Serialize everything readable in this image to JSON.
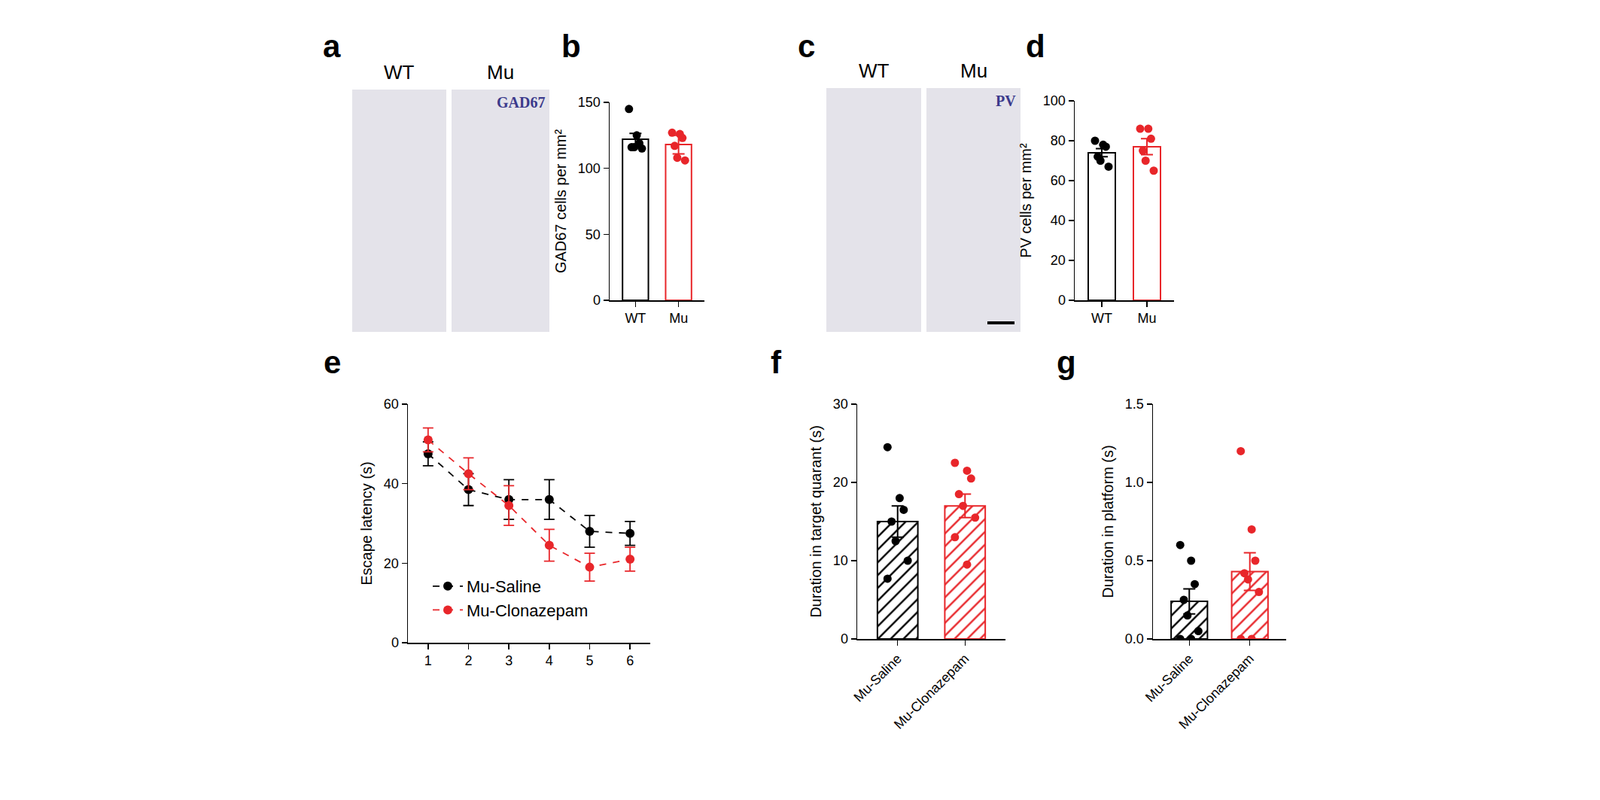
{
  "images": [
    {
      "panel": "a",
      "labels": [
        "WT",
        "Mu"
      ],
      "stain": "GAD67"
    },
    {
      "panel": "c",
      "labels": [
        "WT",
        "Mu"
      ],
      "stain": "PV"
    }
  ],
  "chart_data": [
    {
      "panel": "b",
      "type": "bar",
      "marker": "open",
      "y_label": "GAD67 cells per mm²",
      "categories": [
        "WT",
        "Mu"
      ],
      "values": [
        122,
        118
      ],
      "errors": [
        4.5,
        7
      ],
      "points": [
        [
          145,
          125,
          119,
          116,
          116,
          115
        ],
        [
          127,
          126,
          123,
          117,
          108,
          106
        ]
      ],
      "colors": [
        "#000000",
        "#e8262a"
      ],
      "ylim": [
        0,
        150
      ],
      "yticks": [
        0,
        50,
        100,
        150
      ],
      "grid": false
    },
    {
      "panel": "d",
      "type": "bar",
      "marker": "open",
      "y_label": "PV cells per mm²",
      "categories": [
        "WT",
        "Mu"
      ],
      "values": [
        74,
        77
      ],
      "errors": [
        2,
        4
      ],
      "points": [
        [
          80,
          78,
          77,
          72,
          70,
          67
        ],
        [
          86,
          86,
          81,
          75,
          70,
          65
        ]
      ],
      "colors": [
        "#000000",
        "#e8262a"
      ],
      "ylim": [
        0,
        100
      ],
      "yticks": [
        0,
        20,
        40,
        60,
        80,
        100
      ],
      "grid": false
    },
    {
      "panel": "e",
      "type": "line",
      "y_label": "Escape latency (s)",
      "x": [
        1,
        2,
        3,
        4,
        5,
        6
      ],
      "xlim": [
        0.5,
        6.5
      ],
      "xticks": [
        1,
        2,
        3,
        4,
        5,
        6
      ],
      "ylim": [
        0,
        60
      ],
      "yticks": [
        0,
        20,
        40,
        60
      ],
      "grid": false,
      "legend": "lower left",
      "series": [
        {
          "name": "Mu-Saline",
          "color": "#000000",
          "marker": "circle",
          "line_style": "dashed",
          "values": [
            47.5,
            38.5,
            36,
            36,
            28,
            27.5
          ],
          "errors": [
            3,
            4,
            5,
            5,
            4,
            3
          ]
        },
        {
          "name": "Mu-Clonazepam",
          "color": "#e8262a",
          "marker": "circle",
          "line_style": "dashed",
          "values": [
            51,
            42.5,
            34.5,
            24.5,
            19,
            21
          ],
          "errors": [
            3,
            4,
            5,
            4,
            3.5,
            3
          ]
        }
      ]
    },
    {
      "panel": "f",
      "type": "bar",
      "marker": "hatch",
      "y_label": "Duration in target quarant (s)",
      "categories": [
        "Mu-Saline",
        "Mu-Clonazepam"
      ],
      "values": [
        15,
        17
      ],
      "errors": [
        2,
        1.5
      ],
      "points": [
        [
          24.5,
          18,
          16.5,
          15,
          12.5,
          10,
          7.7
        ],
        [
          22.5,
          21.5,
          20.5,
          18.5,
          17,
          15.5,
          13,
          9.5
        ]
      ],
      "colors": [
        "#000000",
        "#e8262a"
      ],
      "ylim": [
        0,
        30
      ],
      "yticks": [
        0,
        10,
        20,
        30
      ],
      "grid": false
    },
    {
      "panel": "g",
      "type": "bar",
      "marker": "hatch",
      "y_label": "Duration in platform (s)",
      "categories": [
        "Mu-Saline",
        "Mu-Clonazepam"
      ],
      "values": [
        0.24,
        0.43
      ],
      "errors": [
        0.08,
        0.12
      ],
      "points": [
        [
          0.6,
          0.5,
          0.35,
          0.25,
          0.15,
          0.05,
          0,
          0
        ],
        [
          1.2,
          0.7,
          0.5,
          0.42,
          0.38,
          0.3,
          0,
          0
        ]
      ],
      "colors": [
        "#000000",
        "#e8262a"
      ],
      "ylim": [
        0,
        1.5
      ],
      "yticks": [
        {
          "value": 0,
          "label": "0.0"
        },
        0.5,
        {
          "value": 1,
          "label": "1.0"
        },
        1.5
      ],
      "grid": false
    }
  ]
}
